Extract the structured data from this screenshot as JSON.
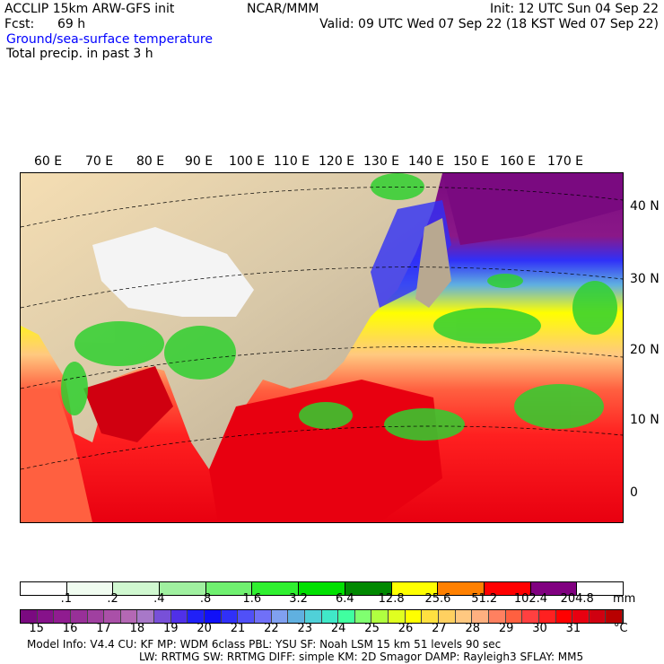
{
  "header": {
    "model": "ACCLIP 15km ARW-GFS init",
    "org": "NCAR/MMM",
    "init": "Init: 12 UTC Sun 04 Sep 22",
    "fcst_label": "Fcst:",
    "fcst_value": "69 h",
    "valid": "Valid: 09 UTC Wed 07 Sep 22 (18 KST Wed 07 Sep 22)",
    "field1": "Ground/sea-surface temperature",
    "field2": "Total precip. in past 3 h"
  },
  "map": {
    "lon_labels": [
      "60 E",
      "70 E",
      "80 E",
      "90 E",
      "100 E",
      "110 E",
      "120 E",
      "130 E",
      "140 E",
      "150 E",
      "160 E",
      "170 E"
    ],
    "lat_labels": [
      "40 N",
      "30 N",
      "20 N",
      "10 N",
      "0"
    ]
  },
  "precip_bar": {
    "colors": [
      "#ffffff",
      "#f0fcf0",
      "#d0f8d0",
      "#a0f0a0",
      "#70f070",
      "#30f030",
      "#00e000",
      "#008800",
      "#ffff00",
      "#ff8000",
      "#ff0000",
      "#800080",
      "#ffffff"
    ],
    "labels": [
      ".1",
      ".2",
      ".4",
      ".8",
      "1.6",
      "3.2",
      "6.4",
      "12.8",
      "25.6",
      "51.2",
      "102.4",
      "204.8"
    ],
    "unit": "mm"
  },
  "temp_bar": {
    "colors": [
      "#7a0a80",
      "#86128a",
      "#901c90",
      "#983098",
      "#a040a0",
      "#aa50a8",
      "#b468b4",
      "#a878c8",
      "#7850d8",
      "#5030e8",
      "#2020f8",
      "#1010f8",
      "#3030f8",
      "#5050f8",
      "#7070f8",
      "#80a0f0",
      "#60b0e0",
      "#50d0d8",
      "#40e8c8",
      "#40ffa0",
      "#80ff70",
      "#b0ff40",
      "#e0ff20",
      "#ffff00",
      "#ffe040",
      "#ffd060",
      "#ffc880",
      "#ffb080",
      "#ff8060",
      "#ff6040",
      "#ff4040",
      "#ff2020",
      "#ff0000",
      "#e80010",
      "#d00010",
      "#b80000"
    ],
    "labels": [
      "15",
      "16",
      "17",
      "18",
      "19",
      "20",
      "21",
      "22",
      "23",
      "24",
      "25",
      "26",
      "27",
      "28",
      "29",
      "30",
      "31"
    ],
    "unit": "°C"
  },
  "footer": {
    "line1": "Model Info: V4.4     CU: KF       MP: WDM 6class  PBL: YSU      SF: Noah LSM     15 km    51 levels    90 sec",
    "line2": "LW: RRTMG    SW: RRTMG  DIFF: simple KM: 2D Smagor DAMP: Rayleigh3  SFLAY: MM5"
  }
}
